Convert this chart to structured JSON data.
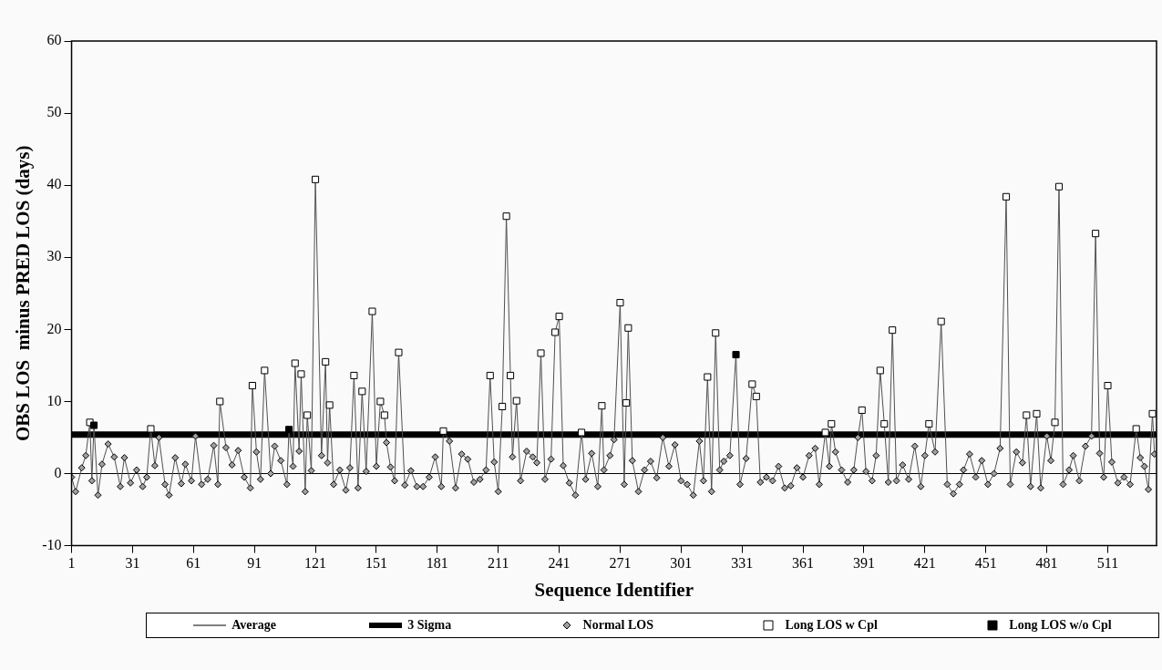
{
  "chart_data": {
    "type": "scatter",
    "xlabel": "Sequence Identifier",
    "ylabel": "OBS LOS  minus PRED LOS (days)",
    "xlim": [
      1,
      535
    ],
    "xticks": [
      1,
      31,
      61,
      91,
      121,
      151,
      181,
      211,
      241,
      271,
      301,
      331,
      361,
      391,
      421,
      451,
      481,
      511
    ],
    "ylim": [
      -10,
      60
    ],
    "yticks": [
      -10,
      0,
      10,
      20,
      30,
      40,
      50,
      60
    ],
    "grid": false,
    "legend": "bottom",
    "ref_lines": [
      {
        "axis": "y",
        "value": 0,
        "label": "Average",
        "color": "#000000"
      },
      {
        "axis": "y",
        "value": 5.4,
        "label": "3 Sigma",
        "color": "#000000"
      }
    ],
    "series": [
      {
        "type": "line",
        "color": "#505050",
        "marker": "none",
        "x": [
          1,
          3,
          6,
          8,
          10,
          11,
          12,
          14,
          16,
          19,
          22,
          25,
          27,
          30,
          33,
          36,
          38,
          40,
          42,
          44,
          47,
          49,
          52,
          55,
          57,
          60,
          62,
          65,
          68,
          71,
          73,
          74,
          77,
          80,
          83,
          86,
          89,
          90,
          92,
          94,
          96,
          99,
          101,
          104,
          107,
          108,
          110,
          111,
          113,
          114,
          116,
          117,
          119,
          121,
          124,
          126,
          127,
          128,
          130,
          133,
          136,
          138,
          140,
          142,
          144,
          146,
          149,
          151,
          153,
          155,
          156,
          158,
          160,
          162,
          165,
          168,
          171,
          174,
          177,
          180,
          183,
          184,
          187,
          190,
          193,
          196,
          199,
          202,
          205,
          207,
          209,
          211,
          213,
          215,
          217,
          218,
          220,
          222,
          225,
          228,
          230,
          232,
          234,
          237,
          239,
          241,
          243,
          246,
          249,
          252,
          254,
          257,
          260,
          262,
          263,
          266,
          268,
          271,
          273,
          274,
          275,
          277,
          280,
          283,
          286,
          289,
          292,
          295,
          298,
          301,
          304,
          307,
          310,
          312,
          314,
          316,
          318,
          320,
          322,
          325,
          328,
          330,
          333,
          336,
          338,
          340,
          343,
          346,
          349,
          352,
          355,
          358,
          361,
          364,
          367,
          369,
          372,
          374,
          375,
          377,
          380,
          383,
          386,
          388,
          390,
          392,
          395,
          397,
          399,
          401,
          403,
          405,
          407,
          410,
          413,
          416,
          419,
          421,
          423,
          426,
          429,
          432,
          435,
          438,
          440,
          443,
          446,
          449,
          452,
          455,
          458,
          461,
          463,
          466,
          469,
          471,
          473,
          476,
          478,
          481,
          483,
          485,
          487,
          489,
          492,
          494,
          497,
          500,
          503,
          505,
          507,
          509,
          511,
          513,
          516,
          519,
          522,
          525,
          527,
          529,
          531,
          533,
          534
        ],
        "values": [
          -0.5,
          -2.5,
          0.8,
          2.5,
          7.1,
          -1.0,
          6.7,
          -3.0,
          1.3,
          4.1,
          2.3,
          -1.8,
          2.2,
          -1.3,
          0.5,
          -1.8,
          -0.5,
          6.2,
          1.1,
          5.0,
          -1.5,
          -3.0,
          2.2,
          -1.4,
          1.3,
          -1.0,
          5.2,
          -1.5,
          -0.8,
          3.9,
          -1.5,
          10.0,
          3.6,
          1.2,
          3.2,
          -0.5,
          -2.0,
          12.2,
          3.0,
          -0.8,
          14.3,
          0.0,
          3.8,
          1.8,
          -1.5,
          6.1,
          1.0,
          15.3,
          3.1,
          13.8,
          -2.5,
          8.1,
          0.4,
          40.8,
          2.5,
          15.5,
          1.5,
          9.5,
          -1.5,
          0.5,
          -2.3,
          0.8,
          13.6,
          -2.0,
          11.4,
          0.3,
          22.5,
          1.0,
          10.0,
          8.1,
          4.3,
          0.9,
          -1.0,
          16.8,
          -1.6,
          0.4,
          -1.8,
          -1.8,
          -0.5,
          2.3,
          -1.8,
          5.9,
          4.5,
          -2.0,
          2.7,
          2.0,
          -1.2,
          -0.8,
          0.5,
          13.6,
          1.6,
          -2.5,
          9.3,
          35.7,
          13.6,
          2.3,
          10.1,
          -1.0,
          3.1,
          2.3,
          1.5,
          16.7,
          -0.8,
          2.0,
          19.6,
          21.8,
          1.1,
          -1.3,
          -3.0,
          5.7,
          -0.8,
          2.8,
          -1.8,
          9.4,
          0.5,
          2.5,
          4.7,
          23.7,
          -1.5,
          9.8,
          20.2,
          1.8,
          -2.5,
          0.5,
          1.7,
          -0.6,
          5.0,
          1.0,
          4.0,
          -1.0,
          -1.5,
          -3.0,
          4.5,
          -1.0,
          13.4,
          -2.5,
          19.5,
          0.5,
          1.7,
          2.5,
          16.5,
          -1.5,
          2.1,
          12.4,
          10.7,
          -1.2,
          -0.5,
          -1.0,
          1.0,
          -2.0,
          -1.7,
          0.8,
          -0.5,
          2.5,
          3.5,
          -1.5,
          5.7,
          1.0,
          6.9,
          3.0,
          0.5,
          -1.2,
          0.5,
          5.0,
          8.8,
          0.3,
          -1.0,
          2.5,
          14.3,
          6.9,
          -1.2,
          19.9,
          -1.0,
          1.2,
          -0.8,
          3.8,
          -1.8,
          2.5,
          6.9,
          3.0,
          21.1,
          -1.5,
          -2.8,
          -1.5,
          0.5,
          2.7,
          -0.5,
          1.8,
          -1.5,
          0.0,
          3.5,
          38.4,
          -1.5,
          3.0,
          1.5,
          8.1,
          -1.8,
          8.3,
          -2.0,
          5.2,
          1.8,
          7.1,
          39.8,
          -1.5,
          0.5,
          2.5,
          -1.0,
          3.8,
          5.2,
          33.3,
          2.8,
          -0.5,
          12.2,
          1.6,
          -1.3,
          -0.5,
          -1.5,
          6.2,
          2.2,
          1.0,
          -2.2,
          8.3,
          2.7
        ]
      },
      {
        "name": "Normal LOS",
        "type": "scatter",
        "color": "#a0a0a0",
        "marker": "diamond",
        "x": [
          1,
          3,
          6,
          8,
          11,
          14,
          16,
          19,
          22,
          25,
          27,
          30,
          33,
          36,
          38,
          42,
          44,
          47,
          49,
          52,
          55,
          57,
          60,
          62,
          65,
          68,
          71,
          73,
          77,
          80,
          83,
          86,
          89,
          92,
          94,
          99,
          101,
          104,
          107,
          110,
          113,
          116,
          119,
          124,
          127,
          130,
          133,
          136,
          138,
          142,
          146,
          151,
          156,
          158,
          160,
          165,
          168,
          171,
          174,
          177,
          180,
          183,
          187,
          190,
          193,
          196,
          199,
          202,
          205,
          209,
          211,
          218,
          222,
          225,
          228,
          230,
          234,
          237,
          243,
          246,
          249,
          254,
          257,
          260,
          263,
          266,
          268,
          273,
          277,
          280,
          283,
          286,
          289,
          292,
          295,
          298,
          301,
          304,
          307,
          310,
          312,
          316,
          320,
          322,
          325,
          330,
          333,
          340,
          343,
          346,
          349,
          352,
          355,
          358,
          361,
          364,
          367,
          369,
          374,
          377,
          380,
          383,
          386,
          388,
          392,
          395,
          397,
          403,
          407,
          410,
          413,
          416,
          419,
          421,
          426,
          432,
          435,
          438,
          440,
          443,
          446,
          449,
          452,
          455,
          458,
          463,
          466,
          469,
          473,
          478,
          481,
          483,
          489,
          492,
          494,
          497,
          500,
          503,
          507,
          509,
          513,
          516,
          519,
          522,
          527,
          529,
          531,
          534
        ],
        "values": [
          -0.5,
          -2.5,
          0.8,
          2.5,
          -1.0,
          -3.0,
          1.3,
          4.1,
          2.3,
          -1.8,
          2.2,
          -1.3,
          0.5,
          -1.8,
          -0.5,
          1.1,
          5.0,
          -1.5,
          -3.0,
          2.2,
          -1.4,
          1.3,
          -1.0,
          5.2,
          -1.5,
          -0.8,
          3.9,
          -1.5,
          3.6,
          1.2,
          3.2,
          -0.5,
          -2.0,
          3.0,
          -0.8,
          0.0,
          3.8,
          1.8,
          -1.5,
          1.0,
          3.1,
          -2.5,
          0.4,
          2.5,
          1.5,
          -1.5,
          0.5,
          -2.3,
          0.8,
          -2.0,
          0.3,
          1.0,
          4.3,
          0.9,
          -1.0,
          -1.6,
          0.4,
          -1.8,
          -1.8,
          -0.5,
          2.3,
          -1.8,
          4.5,
          -2.0,
          2.7,
          2.0,
          -1.2,
          -0.8,
          0.5,
          1.6,
          -2.5,
          2.3,
          -1.0,
          3.1,
          2.3,
          1.5,
          -0.8,
          2.0,
          1.1,
          -1.3,
          -3.0,
          -0.8,
          2.8,
          -1.8,
          0.5,
          2.5,
          4.7,
          -1.5,
          1.8,
          -2.5,
          0.5,
          1.7,
          -0.6,
          5.0,
          1.0,
          4.0,
          -1.0,
          -1.5,
          -3.0,
          4.5,
          -1.0,
          -2.5,
          0.5,
          1.7,
          2.5,
          -1.5,
          2.1,
          -1.2,
          -0.5,
          -1.0,
          1.0,
          -2.0,
          -1.7,
          0.8,
          -0.5,
          2.5,
          3.5,
          -1.5,
          1.0,
          3.0,
          0.5,
          -1.2,
          0.5,
          5.0,
          0.3,
          -1.0,
          2.5,
          -1.2,
          -1.0,
          1.2,
          -0.8,
          3.8,
          -1.8,
          2.5,
          3.0,
          -1.5,
          -2.8,
          -1.5,
          0.5,
          2.7,
          -0.5,
          1.8,
          -1.5,
          0.0,
          3.5,
          -1.5,
          3.0,
          1.5,
          -1.8,
          -2.0,
          5.2,
          1.8,
          -1.5,
          0.5,
          2.5,
          -1.0,
          3.8,
          5.2,
          2.8,
          -0.5,
          1.6,
          -1.3,
          -0.5,
          -1.5,
          2.2,
          1.0,
          -2.2,
          2.7
        ]
      },
      {
        "name": "Long LOS w Cpl",
        "type": "scatter",
        "color": "#ffffff",
        "marker": "square",
        "x": [
          10,
          40,
          74,
          90,
          96,
          111,
          114,
          117,
          121,
          126,
          128,
          140,
          144,
          149,
          153,
          155,
          162,
          184,
          207,
          213,
          215,
          217,
          220,
          232,
          239,
          241,
          252,
          262,
          271,
          274,
          275,
          314,
          318,
          336,
          338,
          372,
          375,
          390,
          399,
          401,
          405,
          423,
          429,
          461,
          471,
          476,
          485,
          487,
          505,
          511,
          525,
          533
        ],
        "values": [
          7.1,
          6.2,
          10.0,
          12.2,
          14.3,
          15.3,
          13.8,
          8.1,
          40.8,
          15.5,
          9.5,
          13.6,
          11.4,
          22.5,
          10.0,
          8.1,
          16.8,
          5.9,
          13.6,
          9.3,
          35.7,
          13.6,
          10.1,
          16.7,
          19.6,
          21.8,
          5.7,
          9.4,
          23.7,
          9.8,
          20.2,
          13.4,
          19.5,
          12.4,
          10.7,
          5.7,
          6.9,
          8.8,
          14.3,
          6.9,
          19.9,
          6.9,
          21.1,
          38.4,
          8.1,
          8.3,
          7.1,
          39.8,
          33.3,
          12.2,
          6.2,
          8.3
        ]
      },
      {
        "name": "Long LOS w/o Cpl",
        "type": "scatter",
        "color": "#000000",
        "marker": "square",
        "x": [
          12,
          108,
          328
        ],
        "values": [
          6.7,
          6.1,
          16.5
        ]
      }
    ]
  }
}
